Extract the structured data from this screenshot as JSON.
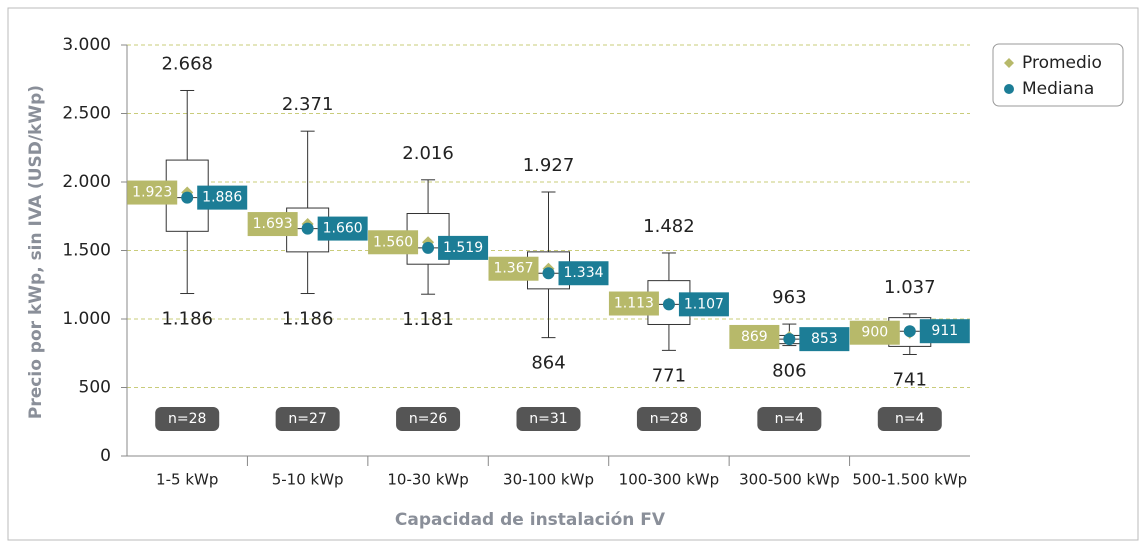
{
  "chart_data": {
    "type": "box",
    "y_label": "Precio por kWp, sin IVA (USD/kWp)",
    "x_label": "Capacidad de instalación FV",
    "categories": [
      "1-5 kWp",
      "5-10 kWp",
      "10-30 kWp",
      "30-100 kWp",
      "100-300 kWp",
      "300-500 kWp",
      "500-1.500 kWp"
    ],
    "ylim": [
      0,
      3000
    ],
    "yticks": [
      0,
      500,
      {
        "value": 1000,
        "label": "1.000"
      },
      {
        "value": 1500,
        "label": "1.500"
      },
      {
        "value": 2000,
        "label": "2.000"
      },
      {
        "value": 2500,
        "label": "2.500"
      },
      {
        "value": 3000,
        "label": "3.000"
      }
    ],
    "grid": true,
    "legend": "top-right",
    "box_color": "#333333",
    "whisker_max": {
      "values": [
        2668,
        2371,
        2016,
        1927,
        1482,
        963,
        1037
      ],
      "value_labels": [
        "2.668",
        "2.371",
        "2.016",
        "1.927",
        "1.482",
        "963",
        "1.037"
      ]
    },
    "whisker_min": {
      "values": [
        1186,
        1186,
        1181,
        864,
        771,
        806,
        741
      ],
      "value_labels": [
        "1.186",
        "1.186",
        "1.181",
        "864",
        "771",
        "806",
        "741"
      ]
    },
    "q1": [
      1640,
      1490,
      1400,
      1220,
      960,
      820,
      800
    ],
    "q3": [
      2160,
      1810,
      1770,
      1490,
      1280,
      880,
      1010
    ],
    "series": [
      {
        "name": "Promedio",
        "color": "#b7b96a",
        "values": [
          1923,
          1693,
          1560,
          1367,
          1113,
          869,
          900
        ],
        "value_labels": [
          "1.923",
          "1.693",
          "1.560",
          "1.367",
          "1.113",
          "869",
          "900"
        ]
      },
      {
        "name": "Mediana",
        "color": "#1c7d96",
        "values": [
          1886,
          1660,
          1519,
          1334,
          1107,
          853,
          911
        ],
        "value_labels": [
          "1.886",
          "1.660",
          "1.519",
          "1.334",
          "1.107",
          "853",
          "911"
        ]
      }
    ],
    "sample_sizes": [
      "n=28",
      "n=27",
      "n=26",
      "n=31",
      "n=28",
      "n=4",
      "n=4"
    ]
  }
}
